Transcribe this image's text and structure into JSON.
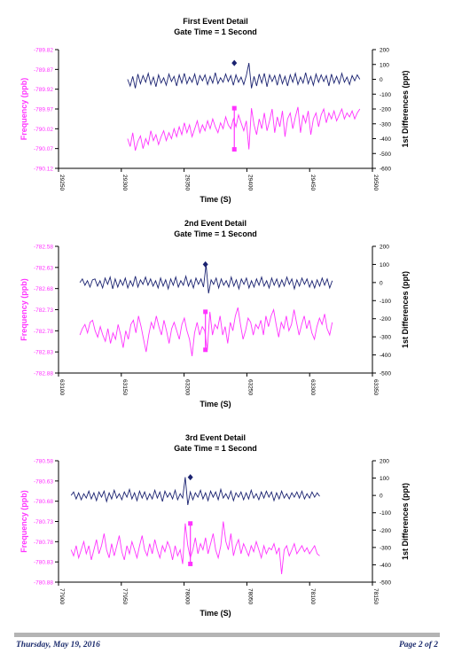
{
  "colors": {
    "frequency": "#ff33ff",
    "differences": "#1a2270",
    "axis": "#000000",
    "footer_text": "#1a2a6c"
  },
  "footer": {
    "date": "Thursday, May 19, 2016",
    "page": "Page 2 of 2"
  },
  "chart_data": [
    {
      "type": "line",
      "title": "First Event Detail",
      "subtitle": "Gate Time = 1 Second",
      "xlabel": "Time (S)",
      "ylabel_left": "Frequency (ppb)",
      "ylabel_right": "1st Differences (ppt)",
      "xlim": [
        29250,
        29500
      ],
      "xticks": [
        29250,
        29300,
        29350,
        29400,
        29450,
        29500
      ],
      "ylim_left": [
        -790.12,
        -789.82
      ],
      "yticks_left": [
        "-789.82",
        "-789.87",
        "-789.92",
        "-789.97",
        "-790.02",
        "-790.07",
        "-790.12"
      ],
      "ylim_right": [
        -600,
        200
      ],
      "yticks_right": [
        200,
        100,
        0,
        -100,
        -200,
        -300,
        -400,
        -500,
        -600
      ],
      "grid": false,
      "event": {
        "x": 29390,
        "freq_before": -790.072,
        "freq_after": -789.968,
        "diff": 110
      },
      "series": [
        {
          "name": "Frequency",
          "axis": "left",
          "x_start": 29305,
          "x_end": 29490,
          "values": [
            -790.045,
            -790.065,
            -790.03,
            -790.075,
            -790.052,
            -790.038,
            -790.07,
            -790.045,
            -790.06,
            -790.025,
            -790.05,
            -790.035,
            -790.06,
            -790.04,
            -790.025,
            -790.05,
            -790.03,
            -790.045,
            -790.02,
            -790.04,
            -790.015,
            -790.035,
            -790.005,
            -790.03,
            -790.01,
            -790.04,
            -790.02,
            -790.0,
            -790.03,
            -790.01,
            -790.025,
            -790.0,
            -790.02,
            -789.995,
            -790.015,
            -790.03,
            -790.005,
            -790.02,
            -789.99,
            -790.01,
            -790.02,
            -789.995,
            -790.015,
            -789.985,
            -790.005,
            -790.025,
            -790.0,
            -790.072,
            -789.968,
            -790.01,
            -790.035,
            -789.995,
            -790.02,
            -789.98,
            -790.025,
            -790.0,
            -789.97,
            -790.03,
            -789.99,
            -790.015,
            -789.975,
            -790.04,
            -789.995,
            -789.98,
            -790.02,
            -789.99,
            -789.965,
            -790.03,
            -789.985,
            -790.005,
            -789.975,
            -790.035,
            -789.995,
            -789.98,
            -790.015,
            -789.985,
            -789.97,
            -790.005,
            -789.98,
            -789.995,
            -789.975,
            -790.0,
            -789.985,
            -789.97,
            -789.995,
            -789.98,
            -789.99,
            -789.975,
            -789.995,
            -789.98,
            -789.97
          ]
        },
        {
          "name": "1st Differences",
          "axis": "right",
          "x_start": 29305,
          "x_end": 29490,
          "values": [
            0,
            -45,
            20,
            -60,
            35,
            -30,
            25,
            -20,
            40,
            -35,
            15,
            -50,
            30,
            -25,
            10,
            -40,
            35,
            -15,
            20,
            -45,
            30,
            -25,
            40,
            -30,
            15,
            -20,
            35,
            -40,
            25,
            -10,
            30,
            -35,
            20,
            -25,
            45,
            -30,
            10,
            -20,
            35,
            -15,
            25,
            -40,
            30,
            -20,
            15,
            -35,
            25,
            110,
            -60,
            20,
            -45,
            35,
            -25,
            40,
            -50,
            30,
            -15,
            25,
            -40,
            35,
            -30,
            20,
            -45,
            30,
            -20,
            40,
            -35,
            15,
            -25,
            45,
            -30,
            20,
            -40,
            35,
            -20,
            30,
            -15,
            25,
            -45,
            35,
            -25,
            20,
            -30,
            40,
            -20,
            15,
            -35,
            25,
            -10,
            30,
            0
          ]
        }
      ]
    },
    {
      "type": "line",
      "title": "2nd Event Detail",
      "subtitle": "Gate Time = 1 Second",
      "xlabel": "Time  (S)",
      "ylabel_left": "Frequency (ppb)",
      "ylabel_right": "1st Differences (ppt)",
      "xlim": [
        63100,
        63350
      ],
      "xticks": [
        63100,
        63150,
        63200,
        63250,
        63300,
        63350
      ],
      "ylim_left": [
        -782.88,
        -782.58
      ],
      "yticks_left": [
        "-782.58",
        "-782.63",
        "-782.68",
        "-782.73",
        "-782.78",
        "-782.83",
        "-782.88"
      ],
      "ylim_right": [
        -500,
        200
      ],
      "yticks_right": [
        200,
        100,
        0,
        -100,
        -200,
        -300,
        -400,
        -500
      ],
      "grid": false,
      "event": {
        "x": 63217,
        "freq_before": -782.825,
        "freq_after": -782.735,
        "diff": 100
      },
      "series": [
        {
          "name": "Frequency",
          "axis": "left",
          "x_start": 63117,
          "x_end": 63318,
          "values": [
            -782.79,
            -782.775,
            -782.765,
            -782.785,
            -782.76,
            -782.755,
            -782.78,
            -782.795,
            -782.77,
            -782.79,
            -782.805,
            -782.775,
            -782.81,
            -782.785,
            -782.8,
            -782.765,
            -782.79,
            -782.82,
            -782.78,
            -782.8,
            -782.765,
            -782.755,
            -782.785,
            -782.745,
            -782.77,
            -782.8,
            -782.83,
            -782.79,
            -782.76,
            -782.775,
            -782.745,
            -782.77,
            -782.79,
            -782.755,
            -782.78,
            -782.81,
            -782.775,
            -782.76,
            -782.78,
            -782.8,
            -782.765,
            -782.75,
            -782.78,
            -782.8,
            -782.84,
            -782.785,
            -782.76,
            -782.79,
            -782.77,
            -782.78,
            -782.825,
            -782.735,
            -782.79,
            -782.765,
            -782.775,
            -782.745,
            -782.79,
            -782.77,
            -782.81,
            -782.76,
            -782.78,
            -782.745,
            -782.725,
            -782.765,
            -782.8,
            -782.78,
            -782.75,
            -782.76,
            -782.79,
            -782.765,
            -782.775,
            -782.755,
            -782.79,
            -782.745,
            -782.77,
            -782.745,
            -782.73,
            -782.765,
            -782.795,
            -782.76,
            -782.775,
            -782.745,
            -782.78,
            -782.765,
            -782.73,
            -782.76,
            -782.79,
            -782.765,
            -782.745,
            -782.775,
            -782.755,
            -782.785,
            -782.8,
            -782.77,
            -782.75,
            -782.765,
            -782.74,
            -782.775,
            -782.79,
            -782.76
          ]
        },
        {
          "name": "1st Differences",
          "axis": "right",
          "x_start": 63117,
          "x_end": 63318,
          "values": [
            0,
            20,
            -15,
            10,
            -25,
            15,
            20,
            -20,
            10,
            -30,
            25,
            -10,
            30,
            -35,
            20,
            -25,
            15,
            -15,
            25,
            -30,
            10,
            -20,
            35,
            -25,
            15,
            -10,
            30,
            -15,
            20,
            -20,
            10,
            -30,
            25,
            -20,
            15,
            -35,
            20,
            -15,
            30,
            -25,
            10,
            -15,
            35,
            -20,
            15,
            -30,
            25,
            -10,
            20,
            -25,
            100,
            -60,
            15,
            -10,
            25,
            -30,
            20,
            -15,
            10,
            -25,
            30,
            -20,
            15,
            -35,
            20,
            -10,
            25,
            -30,
            10,
            -25,
            20,
            -15,
            30,
            -20,
            10,
            -30,
            25,
            -15,
            20,
            -25,
            15,
            -20,
            30,
            -10,
            20,
            -35,
            15,
            -20,
            25,
            -10,
            20,
            -25,
            10,
            -30,
            15,
            -20,
            25,
            -15,
            20,
            -30,
            10
          ]
        }
      ]
    },
    {
      "type": "line",
      "title": "3rd Event Detail",
      "subtitle": "Gate Time = 1 Second",
      "xlabel": "Time  (S)",
      "ylabel_left": "Frequency (ppb)",
      "ylabel_right": "1st Differences (ppt)",
      "xlim": [
        77900,
        78150
      ],
      "xticks": [
        77900,
        77950,
        78000,
        78050,
        78100,
        78150
      ],
      "ylim_left": [
        -780.88,
        -780.58
      ],
      "yticks_left": [
        "-780.58",
        "-780.63",
        "-780.68",
        "-780.73",
        "-780.78",
        "-780.83",
        "-780.88"
      ],
      "ylim_right": [
        -500,
        200
      ],
      "yticks_right": [
        200,
        100,
        0,
        -100,
        -200,
        -300,
        -400,
        -500
      ],
      "grid": false,
      "event": {
        "x": 78005,
        "freq_before": -780.835,
        "freq_after": -780.735,
        "diff": 105
      },
      "series": [
        {
          "name": "Frequency",
          "axis": "left",
          "x_start": 77910,
          "x_end": 78108,
          "values": [
            -780.8,
            -780.815,
            -780.79,
            -780.82,
            -780.8,
            -780.78,
            -780.81,
            -780.79,
            -780.825,
            -780.8,
            -780.775,
            -780.81,
            -780.79,
            -780.76,
            -780.8,
            -780.82,
            -780.785,
            -780.815,
            -780.79,
            -780.765,
            -780.805,
            -780.825,
            -780.79,
            -780.81,
            -780.78,
            -780.8,
            -780.82,
            -780.79,
            -780.765,
            -780.8,
            -780.815,
            -780.785,
            -780.81,
            -780.775,
            -780.8,
            -780.82,
            -780.79,
            -780.805,
            -780.78,
            -780.795,
            -780.825,
            -780.79,
            -780.815,
            -780.8,
            -780.835,
            -780.735,
            -780.79,
            -780.82,
            -780.8,
            -780.77,
            -780.81,
            -780.785,
            -780.8,
            -780.77,
            -780.81,
            -780.785,
            -780.76,
            -780.8,
            -780.82,
            -780.79,
            -780.73,
            -780.78,
            -780.8,
            -780.76,
            -780.815,
            -780.79,
            -780.775,
            -780.81,
            -780.785,
            -780.8,
            -780.815,
            -780.79,
            -780.805,
            -780.78,
            -780.8,
            -780.82,
            -780.79,
            -780.81,
            -780.795,
            -780.8,
            -780.785,
            -780.81,
            -780.795,
            -780.86,
            -780.8,
            -780.79,
            -780.815,
            -780.8,
            -780.785,
            -780.81,
            -780.8,
            -780.79,
            -780.805,
            -780.795,
            -780.81,
            -780.8,
            -780.79,
            -780.81,
            -780.815
          ]
        },
        {
          "name": "1st Differences",
          "axis": "right",
          "x_start": 77910,
          "x_end": 78108,
          "values": [
            0,
            20,
            -20,
            15,
            -25,
            10,
            -15,
            25,
            -20,
            15,
            -30,
            20,
            -10,
            25,
            -35,
            15,
            -20,
            30,
            -15,
            10,
            -25,
            20,
            -10,
            35,
            -20,
            15,
            -30,
            25,
            -15,
            20,
            -25,
            10,
            -20,
            30,
            -15,
            20,
            -35,
            25,
            -10,
            15,
            -20,
            30,
            -25,
            10,
            -15,
            105,
            -55,
            20,
            -25,
            15,
            -10,
            30,
            -20,
            15,
            -30,
            25,
            -10,
            20,
            -25,
            35,
            -15,
            10,
            -20,
            25,
            -30,
            15,
            -10,
            20,
            -25,
            15,
            -20,
            30,
            -15,
            10,
            -25,
            20,
            -15,
            25,
            -10,
            20,
            -30,
            15,
            -20,
            25,
            -15,
            10,
            -20,
            15,
            -10,
            20,
            -15,
            25,
            -20,
            10,
            -15,
            20,
            -10,
            15,
            -5
          ]
        }
      ]
    }
  ]
}
